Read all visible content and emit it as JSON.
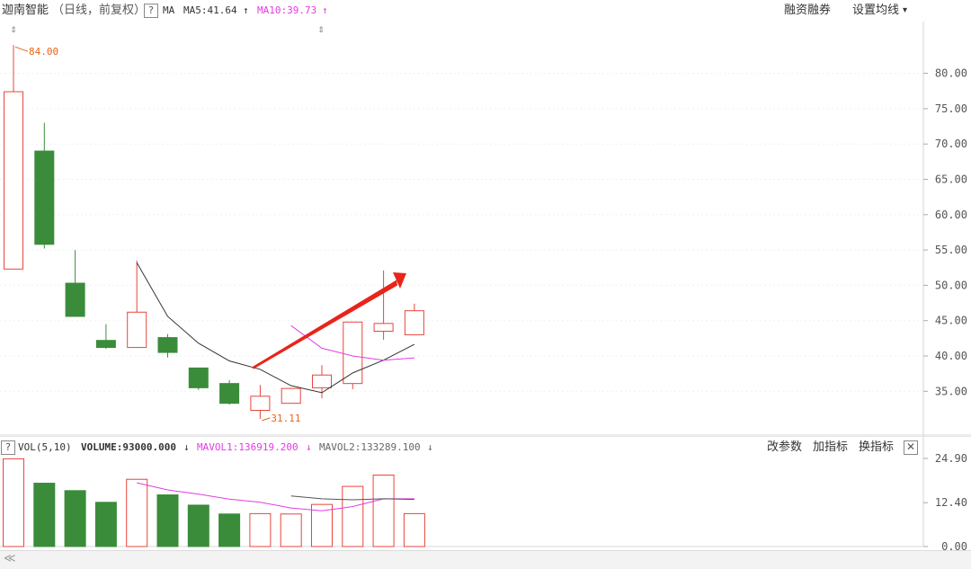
{
  "header": {
    "stock_name": "迦南智能",
    "adjust_label": "（日线，前复权）",
    "help": "?",
    "ma_label": "MA",
    "ma5_text": "MA5:41.64",
    "ma5_arrow": "↑",
    "ma10_text": "MA10:39.73",
    "ma10_arrow": "↑",
    "margin_button": "融资融券",
    "settings_button": "设置均线",
    "settings_arrow": "▾"
  },
  "volume_header": {
    "help": "?",
    "indicator": "VOL(5,10)",
    "volume_text": "VOLUME:93000.000",
    "volume_arrow": "↓",
    "mavol1_text": "MAVOL1:136919.200",
    "mavol1_arrow": "↓",
    "mavol2_text": "MAVOL2:133289.100",
    "mavol2_arrow": "↓",
    "change_params": "改参数",
    "add_indicator": "加指标",
    "switch_indicator": "换指标",
    "close": "✕"
  },
  "footer": {
    "scroll_left": "≪"
  },
  "colors": {
    "up": "#e8453c",
    "down": "#3a8c3a",
    "ma5": "#333333",
    "ma10": "#e23ce2",
    "arrow": "#e8251b",
    "label": "#e8651a"
  },
  "chart_data": {
    "type": "candlestick",
    "price_ylim": [
      30,
      84
    ],
    "price_ticks": [
      "80.00",
      "75.00",
      "70.00",
      "65.00",
      "60.00",
      "55.00",
      "50.00",
      "45.00",
      "40.00",
      "35.00"
    ],
    "candles": [
      {
        "o": 52.3,
        "h": 84.0,
        "l": 52.3,
        "c": 77.4,
        "up": true
      },
      {
        "o": 69.0,
        "h": 73.0,
        "l": 55.2,
        "c": 55.8,
        "up": false
      },
      {
        "o": 50.3,
        "h": 55.0,
        "l": 45.6,
        "c": 45.6,
        "up": false
      },
      {
        "o": 42.2,
        "h": 44.5,
        "l": 41.0,
        "c": 41.2,
        "up": false
      },
      {
        "o": 41.2,
        "h": 53.5,
        "l": 41.2,
        "c": 46.2,
        "up": true
      },
      {
        "o": 42.6,
        "h": 43.1,
        "l": 39.8,
        "c": 40.5,
        "up": false
      },
      {
        "o": 38.3,
        "h": 38.3,
        "l": 35.2,
        "c": 35.5,
        "up": false
      },
      {
        "o": 36.1,
        "h": 36.6,
        "l": 33.1,
        "c": 33.3,
        "up": false
      },
      {
        "o": 32.3,
        "h": 35.9,
        "l": 31.11,
        "c": 34.3,
        "up": true
      },
      {
        "o": 33.3,
        "h": 35.5,
        "l": 33.3,
        "c": 35.4,
        "up": true
      },
      {
        "o": 35.5,
        "h": 38.7,
        "l": 34.0,
        "c": 37.3,
        "up": true
      },
      {
        "o": 36.1,
        "h": 44.8,
        "l": 35.3,
        "c": 44.8,
        "up": true
      },
      {
        "o": 43.5,
        "h": 52.1,
        "l": 42.3,
        "c": 44.6,
        "up": true
      },
      {
        "o": 43.0,
        "h": 47.4,
        "l": 43.0,
        "c": 46.4,
        "up": true
      }
    ],
    "ma5": [
      null,
      null,
      null,
      null,
      53.2,
      45.6,
      41.8,
      39.3,
      38.1,
      35.8,
      34.8,
      37.6,
      39.4,
      41.64
    ],
    "ma10": [
      null,
      null,
      null,
      null,
      null,
      null,
      null,
      null,
      null,
      44.3,
      41.1,
      40.0,
      39.4,
      39.73
    ],
    "high_label": "84.00",
    "low_label": "31.11",
    "volume_ylim": [
      0,
      27
    ],
    "volume_ticks": [
      "24.90",
      "12.40",
      "0.00"
    ],
    "volume": [
      24.8,
      17.9,
      15.8,
      12.5,
      19.0,
      14.6,
      11.7,
      9.2,
      9.3,
      9.2,
      11.9,
      17.0,
      20.2,
      9.3
    ],
    "mavol1": [
      null,
      null,
      null,
      null,
      18.0,
      16.0,
      14.8,
      13.4,
      12.5,
      10.9,
      10.1,
      11.3,
      13.5,
      13.5
    ],
    "mavol2": [
      null,
      null,
      null,
      null,
      null,
      null,
      null,
      null,
      null,
      14.3,
      13.5,
      13.2,
      13.5,
      13.3
    ]
  }
}
